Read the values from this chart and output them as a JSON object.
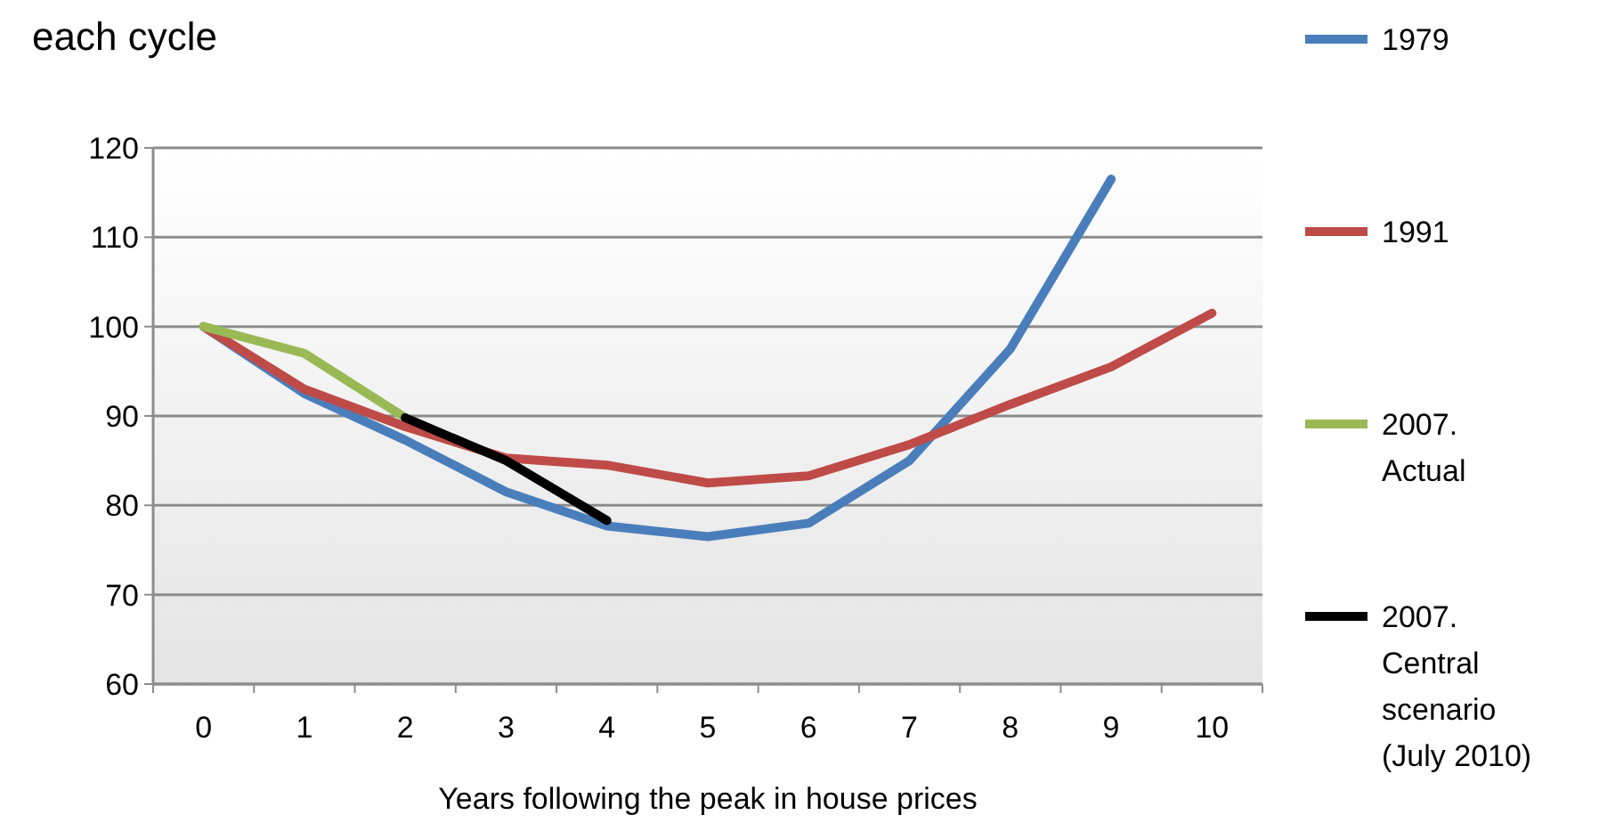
{
  "chart_data": {
    "type": "line",
    "title": "each cycle",
    "xlabel": "Years following  the peak in house prices",
    "categories": [
      "0",
      "1",
      "2",
      "3",
      "4",
      "5",
      "6",
      "7",
      "8",
      "9",
      "10"
    ],
    "ylim": [
      60,
      120
    ],
    "yticks": [
      60,
      70,
      80,
      90,
      100,
      110,
      120
    ],
    "grid": "y",
    "legend": "right",
    "marker": "none",
    "line_style": "solid",
    "series": [
      {
        "name": "1979",
        "color": "#4a7ebb",
        "values": [
          100,
          92.5,
          87.3,
          81.5,
          77.7,
          76.5,
          78,
          85,
          97.5,
          116.5,
          null
        ]
      },
      {
        "name": "1991",
        "color": "#be4b48",
        "values": [
          100,
          93,
          88.8,
          85.3,
          84.5,
          82.5,
          83.3,
          86.8,
          91.3,
          95.5,
          101.5
        ]
      },
      {
        "name": "2007. Actual",
        "color": "#98b954",
        "values": [
          100,
          97,
          89.8,
          null,
          null,
          null,
          null,
          null,
          null,
          null,
          null
        ]
      },
      {
        "name": "2007. Central scenario (July 2010)",
        "color": "#000000",
        "values": [
          null,
          null,
          89.8,
          85,
          78.3,
          null,
          null,
          null,
          null,
          null,
          null
        ]
      }
    ]
  }
}
